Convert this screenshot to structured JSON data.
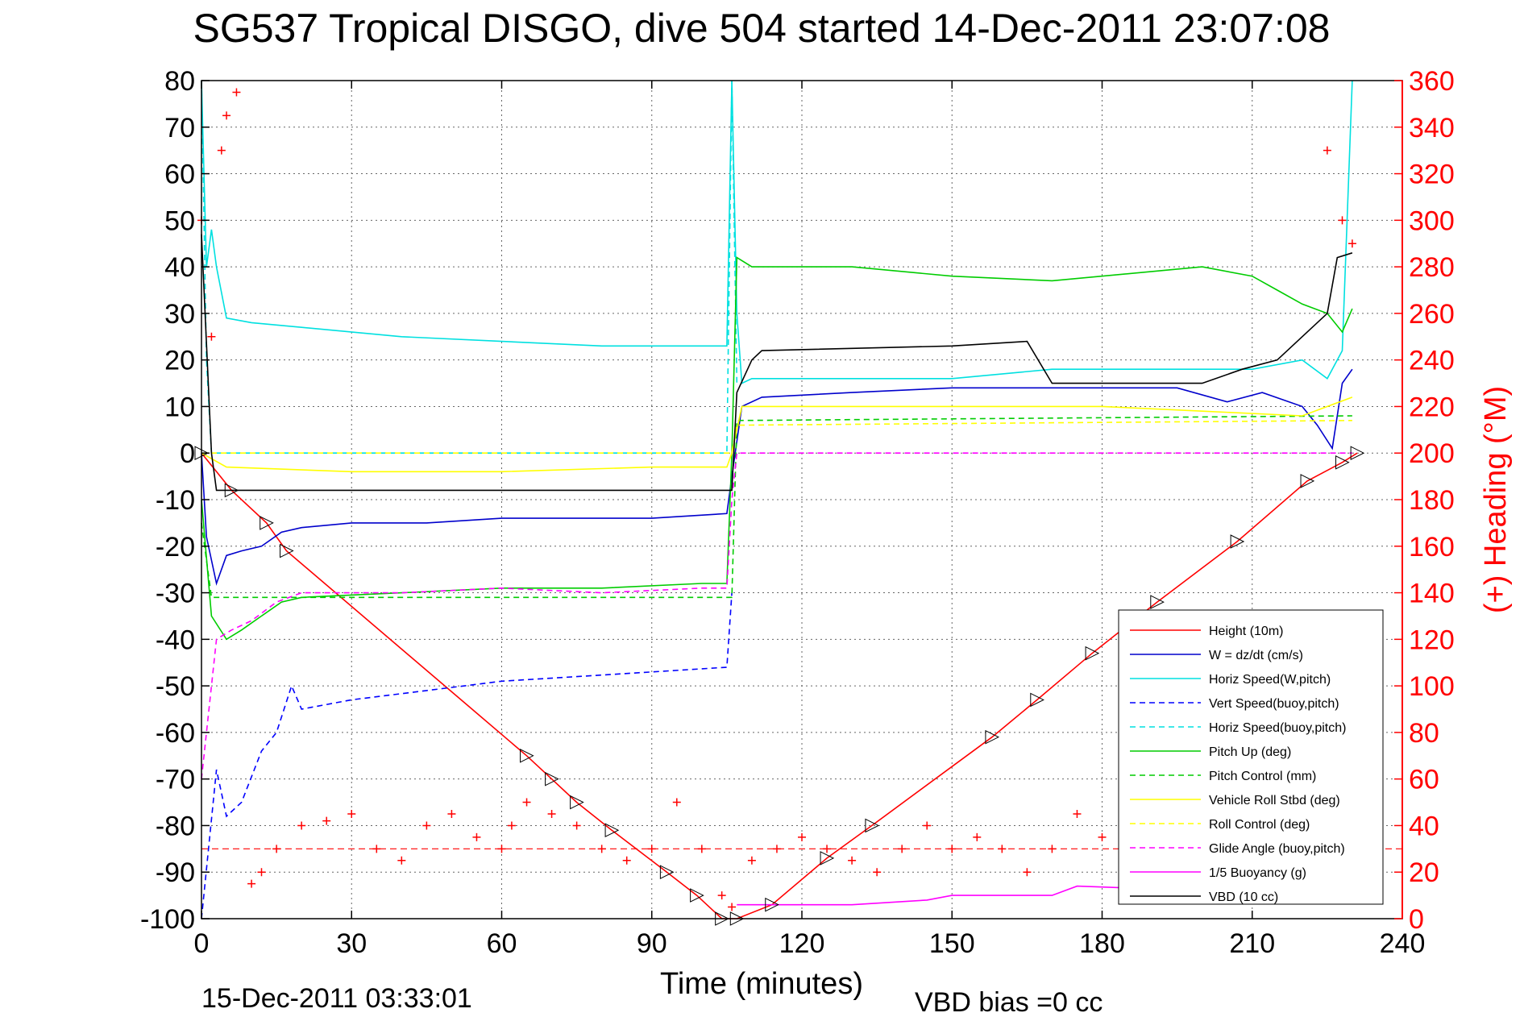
{
  "figure": {
    "title": "SG537 Tropical DISGO, dive 504 started 14-Dec-2011 23:07:08",
    "end_time_label": "15-Dec-2011 03:33:01",
    "vbd_bias_label": "VBD bias =0 cc"
  },
  "chart_data": {
    "type": "line",
    "title": "SG537 Tropical DISGO, dive 504 started 14-Dec-2011 23:07:08",
    "xlabel": "Time (minutes)",
    "ylabel": "",
    "y2label": "(+) Heading (°M)",
    "xlim": [
      0,
      240
    ],
    "ylim": [
      -100,
      80
    ],
    "y2lim": [
      0,
      360
    ],
    "xticks": [
      0,
      30,
      60,
      90,
      120,
      150,
      180,
      210,
      240
    ],
    "yticks": [
      80,
      70,
      60,
      50,
      40,
      30,
      20,
      10,
      0,
      -10,
      -20,
      -30,
      -40,
      -50,
      -60,
      -70,
      -80,
      -90,
      -100
    ],
    "y2ticks": [
      360,
      340,
      320,
      300,
      280,
      260,
      240,
      220,
      200,
      180,
      160,
      140,
      120,
      100,
      80,
      60,
      40,
      20,
      0
    ],
    "grid": true,
    "legend_position": "bottom-right",
    "series": [
      {
        "name": "Height (10m)",
        "color": "#ff0000",
        "style": "solid",
        "x": [
          0,
          6,
          13,
          17,
          65,
          70,
          75,
          82,
          93,
          99,
          104,
          107,
          114,
          125,
          134,
          158,
          167,
          178,
          191,
          207,
          221,
          228,
          231
        ],
        "y": [
          0,
          -8,
          -15,
          -21,
          -65,
          -70,
          -75,
          -81,
          -90,
          -95,
          -100,
          -100,
          -97,
          -87,
          -80,
          -61,
          -53,
          -43,
          -32,
          -19,
          -6,
          -2,
          0
        ]
      },
      {
        "name": "W = dz/dt (cm/s)",
        "color": "#0000cc",
        "style": "solid",
        "x": [
          0,
          1,
          3,
          5,
          8,
          12,
          16,
          20,
          30,
          45,
          60,
          75,
          90,
          105,
          106,
          108,
          112,
          130,
          150,
          170,
          180,
          195,
          205,
          212,
          220,
          223,
          226,
          228,
          230
        ],
        "y": [
          0,
          -18,
          -28,
          -22,
          -21,
          -20,
          -17,
          -16,
          -15,
          -15,
          -14,
          -14,
          -14,
          -13,
          -5,
          10,
          12,
          13,
          14,
          14,
          14,
          14,
          11,
          13,
          10,
          6,
          1,
          15,
          18
        ]
      },
      {
        "name": "Horiz Speed(W,pitch)",
        "color": "#00e0e0",
        "style": "solid",
        "x": [
          0,
          1,
          2,
          3,
          5,
          10,
          20,
          40,
          60,
          80,
          90,
          105,
          106,
          107,
          108,
          110,
          130,
          150,
          170,
          190,
          210,
          220,
          225,
          228,
          230
        ],
        "y": [
          80,
          40,
          48,
          40,
          29,
          28,
          27,
          25,
          24,
          23,
          23,
          23,
          80,
          30,
          15,
          16,
          16,
          16,
          18,
          18,
          18,
          20,
          16,
          22,
          80
        ]
      },
      {
        "name": "Vert Speed(buoy,pitch)",
        "color": "#0000ff",
        "style": "dashed",
        "x": [
          0,
          3,
          5,
          8,
          12,
          15,
          18,
          20,
          30,
          45,
          60,
          75,
          90,
          105,
          106
        ],
        "y": [
          -100,
          -68,
          -78,
          -75,
          -64,
          -60,
          -50,
          -55,
          -53,
          -51,
          -49,
          -48,
          -47,
          -46,
          -30
        ]
      },
      {
        "name": "Horiz Speed(buoy,pitch)",
        "color": "#00e0e0",
        "style": "dashed",
        "x": [
          0,
          1,
          2,
          105,
          106,
          107
        ],
        "y": [
          80,
          20,
          0,
          0,
          80,
          15
        ]
      },
      {
        "name": "Pitch Up (deg)",
        "color": "#00cc00",
        "style": "solid",
        "x": [
          0,
          2,
          5,
          8,
          12,
          16,
          20,
          40,
          60,
          80,
          100,
          105,
          106,
          107,
          110,
          130,
          150,
          170,
          200,
          210,
          215,
          220,
          225,
          228,
          230
        ],
        "y": [
          -10,
          -35,
          -40,
          -38,
          -35,
          -32,
          -31,
          -30,
          -29,
          -29,
          -28,
          -28,
          0,
          42,
          40,
          40,
          38,
          37,
          40,
          38,
          35,
          32,
          30,
          26,
          31
        ]
      },
      {
        "name": "Pitch Control (mm)",
        "color": "#00cc00",
        "style": "dashed",
        "x": [
          0,
          2,
          106,
          107,
          230
        ],
        "y": [
          -15,
          -31,
          -31,
          7,
          8
        ]
      },
      {
        "name": "Vehicle Roll Stbd (deg)",
        "color": "#ffff00",
        "style": "solid",
        "x": [
          0,
          5,
          30,
          60,
          90,
          105,
          106,
          108,
          130,
          150,
          180,
          200,
          220,
          230
        ],
        "y": [
          0,
          -3,
          -4,
          -4,
          -3,
          -3,
          0,
          10,
          10,
          10,
          10,
          9,
          8,
          12
        ]
      },
      {
        "name": "Roll Control (deg)",
        "color": "#ffff00",
        "style": "dashed",
        "x": [
          0,
          3,
          106,
          107,
          230
        ],
        "y": [
          0,
          0,
          0,
          6,
          7
        ]
      },
      {
        "name": "Glide Angle (buoy,pitch)",
        "color": "#ff00ff",
        "style": "dashed",
        "x": [
          0,
          3,
          6,
          10,
          15,
          20,
          40,
          60,
          80,
          100,
          105,
          106,
          107,
          230
        ],
        "y": [
          -70,
          -40,
          -38,
          -36,
          -32,
          -30,
          -30,
          -29,
          -30,
          -29,
          -29,
          -10,
          0,
          0
        ]
      },
      {
        "name": "1/5 Buoyancy (g)",
        "color": "#ff00ff",
        "style": "solid",
        "x": [
          107,
          130,
          145,
          150,
          170,
          175,
          200,
          230
        ],
        "y": [
          -97,
          -97,
          -96,
          -95,
          -95,
          -93,
          -94,
          -94
        ]
      },
      {
        "name": "VBD (10 cc)",
        "color": "#000000",
        "style": "solid",
        "x": [
          0,
          2,
          3,
          106,
          107,
          110,
          112,
          150,
          165,
          170,
          200,
          208,
          215,
          220,
          225,
          227,
          230
        ],
        "y": [
          47,
          0,
          -8,
          -8,
          13,
          20,
          22,
          23,
          24,
          15,
          15,
          18,
          20,
          25,
          30,
          42,
          43
        ]
      }
    ],
    "heading": {
      "name": "(+) Heading",
      "color": "#ff0000",
      "marker": "+",
      "axis": "right",
      "mean_line": 30,
      "x": [
        0,
        2,
        4,
        5,
        7,
        10,
        12,
        15,
        20,
        25,
        30,
        35,
        40,
        45,
        50,
        55,
        60,
        62,
        65,
        70,
        75,
        80,
        85,
        90,
        95,
        100,
        104,
        106,
        110,
        115,
        120,
        125,
        130,
        135,
        140,
        145,
        150,
        155,
        160,
        165,
        170,
        175,
        180,
        185,
        190,
        195,
        200,
        205,
        210,
        215,
        220,
        225,
        228,
        230
      ],
      "y": [
        300,
        250,
        330,
        345,
        355,
        15,
        20,
        30,
        40,
        42,
        45,
        30,
        25,
        40,
        45,
        35,
        30,
        40,
        50,
        45,
        40,
        30,
        25,
        30,
        50,
        30,
        10,
        5,
        25,
        30,
        35,
        30,
        25,
        20,
        30,
        40,
        30,
        35,
        30,
        20,
        30,
        45,
        35,
        30,
        28,
        32,
        25,
        30,
        35,
        28,
        30,
        330,
        300,
        290
      ]
    }
  }
}
